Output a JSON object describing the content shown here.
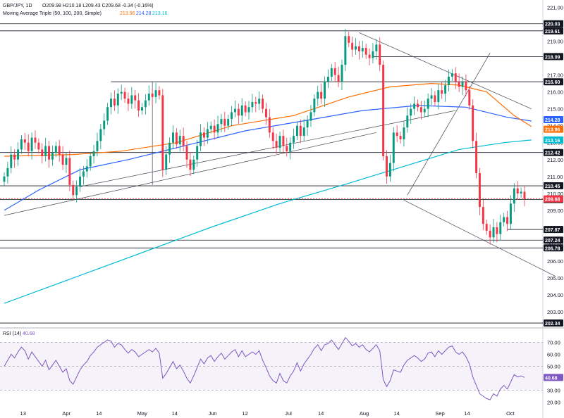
{
  "header": {
    "symbol": "GBP/JPY, 1D",
    "ohlc": "O209.98  H210.18  L209.43  C209.68  -0.34 (-0.16%)",
    "indicator": "Moving Average Triple (50, 100, 200, Simple)",
    "ma_values": [
      "213.96",
      "214.28",
      "213.16"
    ]
  },
  "rsi_header": {
    "label": "RSI (14)",
    "value": "40.68"
  },
  "colors": {
    "up": "#089981",
    "down": "#f23645",
    "ma50": "#ff6d00",
    "ma100": "#2962ff",
    "ma200": "#00bcd4",
    "rsi": "#7e57c2",
    "current": "#f23645",
    "level": "#131722"
  },
  "chart_data": {
    "type": "candlestick",
    "y_ticks": [
      "221.00",
      "220.00",
      "219.00",
      "218.00",
      "217.00",
      "216.00",
      "215.00",
      "214.00",
      "213.00",
      "212.00",
      "211.00",
      "210.00",
      "209.00",
      "208.00",
      "207.00",
      "206.00",
      "205.00",
      "204.00",
      "203.00"
    ],
    "ylim": [
      202.3,
      221.1
    ],
    "x_ticks": [
      "13",
      "Apr",
      "14",
      "May",
      "14",
      "Jun",
      "12",
      "Jul",
      "14",
      "Aug",
      "14",
      "Sep",
      "14",
      "Oct"
    ],
    "levels": [
      "220.03",
      "219.61",
      "218.09",
      "216.60",
      "212.42",
      "210.45",
      "209.64",
      "207.87",
      "207.24",
      "206.78",
      "202.34"
    ],
    "current_price": "209.68",
    "ma_tags": [
      "214.28",
      "213.96",
      "213.16"
    ],
    "rsi_ticks": [
      "70.00",
      "60.00",
      "50.00",
      "40.00",
      "30.00",
      "20.00"
    ],
    "rsi_last": "40.68",
    "closes": [
      211.0,
      211.5,
      212.3,
      212.0,
      212.6,
      213.2,
      213.0,
      212.5,
      213.3,
      213.0,
      212.6,
      212.2,
      212.8,
      212.0,
      212.4,
      212.8,
      212.3,
      211.7,
      212.1,
      210.5,
      209.9,
      210.4,
      211.0,
      211.3,
      211.6,
      212.2,
      212.5,
      213.1,
      213.8,
      214.3,
      215.1,
      215.6,
      215.2,
      215.9,
      216.0,
      215.6,
      215.3,
      215.8,
      215.5,
      214.9,
      215.1,
      215.5,
      215.9,
      215.7,
      216.1,
      215.8,
      211.4,
      212.3,
      213.0,
      213.6,
      212.9,
      213.4,
      212.8,
      212.0,
      211.4,
      212.0,
      212.8,
      213.6,
      213.3,
      213.8,
      214.0,
      213.6,
      214.1,
      214.4,
      214.0,
      214.4,
      214.8,
      215.0,
      214.6,
      215.2,
      214.8,
      215.1,
      215.4,
      215.3,
      215.6,
      215.0,
      214.5,
      213.6,
      213.1,
      212.7,
      213.4,
      212.8,
      212.5,
      213.0,
      213.4,
      214.0,
      213.4,
      213.9,
      214.3,
      214.8,
      215.6,
      216.0,
      215.6,
      216.6,
      216.9,
      217.4,
      217.0,
      216.6,
      217.6,
      219.3,
      218.9,
      218.5,
      218.7,
      218.4,
      218.6,
      218.2,
      218.0,
      218.4,
      218.8,
      217.6,
      212.2,
      211.0,
      211.8,
      213.6,
      213.4,
      213.2,
      213.9,
      214.6,
      215.0,
      215.3,
      215.1,
      214.8,
      215.0,
      215.6,
      215.8,
      215.4,
      216.1,
      215.9,
      216.4,
      216.9,
      217.1,
      216.6,
      216.3,
      216.6,
      216.1,
      215.2,
      213.1,
      211.2,
      209.2,
      208.2,
      207.8,
      207.4,
      208.0,
      207.6,
      208.3,
      208.6,
      208.2,
      209.4,
      210.3,
      210.0,
      210.1,
      209.68
    ],
    "ma50": [
      [
        0,
        212.2
      ],
      [
        20,
        212.3
      ],
      [
        34,
        212.5
      ],
      [
        50,
        213.0
      ],
      [
        66,
        214.0
      ],
      [
        84,
        214.6
      ],
      [
        100,
        215.7
      ],
      [
        112,
        216.3
      ],
      [
        124,
        216.5
      ],
      [
        132,
        216.4
      ],
      [
        140,
        216.0
      ],
      [
        148,
        214.6
      ],
      [
        153,
        213.96
      ]
    ],
    "ma100": [
      [
        0,
        209.0
      ],
      [
        10,
        210.2
      ],
      [
        22,
        211.4
      ],
      [
        36,
        212.0
      ],
      [
        52,
        212.8
      ],
      [
        70,
        213.7
      ],
      [
        90,
        214.4
      ],
      [
        104,
        214.9
      ],
      [
        120,
        215.2
      ],
      [
        134,
        215.1
      ],
      [
        146,
        214.5
      ],
      [
        153,
        214.28
      ]
    ],
    "ma200": [
      [
        0,
        203.5
      ],
      [
        20,
        205.0
      ],
      [
        40,
        206.5
      ],
      [
        60,
        208.0
      ],
      [
        80,
        209.4
      ],
      [
        100,
        210.6
      ],
      [
        116,
        211.6
      ],
      [
        132,
        212.6
      ],
      [
        145,
        213.0
      ],
      [
        153,
        213.16
      ]
    ],
    "rsi": [
      50,
      55,
      60,
      57,
      62,
      66,
      63,
      56,
      62,
      58,
      54,
      50,
      55,
      47,
      51,
      55,
      50,
      45,
      48,
      38,
      35,
      41,
      47,
      51,
      54,
      59,
      62,
      66,
      68,
      70,
      72,
      71,
      66,
      69,
      68,
      64,
      61,
      64,
      62,
      58,
      60,
      62,
      64,
      62,
      65,
      61,
      40,
      44,
      49,
      54,
      48,
      51,
      46,
      40,
      36,
      42,
      49,
      56,
      52,
      57,
      59,
      54,
      58,
      61,
      56,
      59,
      62,
      64,
      58,
      63,
      58,
      60,
      62,
      60,
      63,
      55,
      49,
      42,
      38,
      36,
      44,
      38,
      36,
      42,
      46,
      53,
      46,
      52,
      56,
      60,
      65,
      68,
      63,
      68,
      69,
      72,
      68,
      64,
      69,
      74,
      71,
      67,
      69,
      66,
      68,
      64,
      62,
      65,
      68,
      63,
      39,
      33,
      38,
      47,
      46,
      45,
      51,
      55,
      57,
      59,
      57,
      54,
      56,
      61,
      62,
      58,
      63,
      60,
      63,
      66,
      67,
      62,
      60,
      62,
      58,
      52,
      41,
      34,
      27,
      25,
      23,
      22,
      27,
      25,
      31,
      34,
      31,
      37,
      43,
      41,
      42,
      40.68
    ]
  }
}
